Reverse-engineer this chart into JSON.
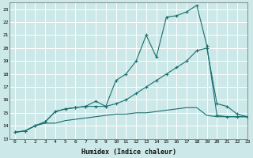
{
  "xlabel": "Humidex (Indice chaleur)",
  "background_color": "#cce8e8",
  "grid_color": "#ffffff",
  "line_color": "#1a6e6e",
  "xlim": [
    -0.5,
    23
  ],
  "ylim": [
    13,
    23.5
  ],
  "yticks": [
    13,
    14,
    15,
    16,
    17,
    18,
    19,
    20,
    21,
    22,
    23
  ],
  "xticks": [
    0,
    1,
    2,
    3,
    4,
    5,
    6,
    7,
    8,
    9,
    10,
    11,
    12,
    13,
    14,
    15,
    16,
    17,
    18,
    19,
    20,
    21,
    22,
    23
  ],
  "line1_x": [
    0,
    1,
    2,
    3,
    4,
    5,
    6,
    7,
    8,
    9,
    10,
    11,
    12,
    13,
    14,
    15,
    16,
    17,
    18,
    19,
    20,
    21,
    22,
    23
  ],
  "line1_y": [
    13.5,
    13.6,
    14.0,
    14.3,
    15.1,
    15.3,
    15.4,
    15.5,
    15.9,
    15.5,
    17.5,
    18.0,
    19.0,
    21.0,
    19.3,
    22.4,
    22.5,
    22.8,
    23.3,
    20.2,
    14.8,
    14.7,
    14.7,
    14.7
  ],
  "line2_x": [
    0,
    1,
    2,
    3,
    4,
    5,
    6,
    7,
    8,
    9,
    10,
    11,
    12,
    13,
    14,
    15,
    16,
    17,
    18,
    19,
    20,
    21,
    22,
    23
  ],
  "line2_y": [
    13.5,
    13.6,
    14.0,
    14.3,
    15.1,
    15.3,
    15.4,
    15.5,
    15.5,
    15.5,
    15.7,
    16.0,
    16.5,
    17.0,
    17.5,
    18.0,
    18.5,
    19.0,
    19.8,
    20.0,
    15.7,
    15.5,
    14.9,
    14.7
  ],
  "line3_x": [
    0,
    1,
    2,
    3,
    4,
    5,
    6,
    7,
    8,
    9,
    10,
    11,
    12,
    13,
    14,
    15,
    16,
    17,
    18,
    19,
    20,
    21,
    22,
    23
  ],
  "line3_y": [
    13.5,
    13.6,
    14.0,
    14.2,
    14.2,
    14.4,
    14.5,
    14.6,
    14.7,
    14.8,
    14.9,
    14.9,
    15.0,
    15.0,
    15.1,
    15.2,
    15.3,
    15.4,
    15.4,
    14.8,
    14.7,
    14.7,
    14.7,
    14.7
  ]
}
